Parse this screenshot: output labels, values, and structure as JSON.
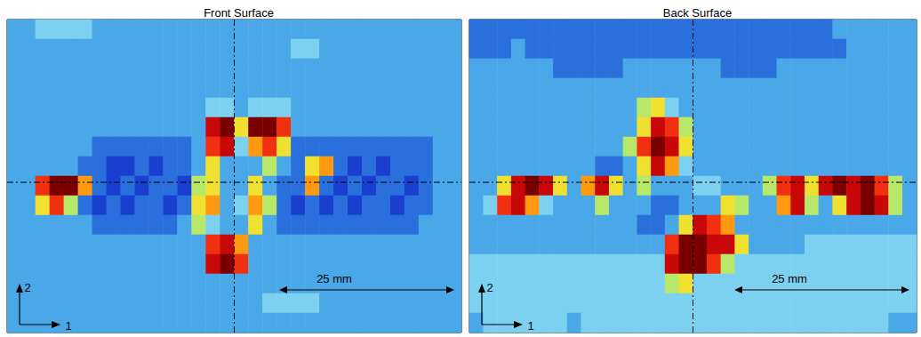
{
  "chart_data": [
    {
      "type": "heatmap",
      "title": "Front Surface",
      "zlim": [
        0,
        10
      ],
      "tick_labels": false,
      "annotations": {
        "axis_1": "1",
        "axis_2": "2",
        "scale_bar": "25 mm"
      },
      "cells": [
        [
          3,
          3,
          4,
          4,
          4,
          4,
          3,
          3,
          3,
          3,
          3,
          3,
          3,
          3,
          3,
          3,
          3,
          3,
          3,
          3,
          3,
          3,
          3,
          3,
          3,
          3,
          3,
          3,
          3,
          3,
          3,
          3
        ],
        [
          3,
          3,
          3,
          3,
          3,
          3,
          3,
          3,
          3,
          3,
          3,
          3,
          3,
          3,
          3,
          3,
          3,
          3,
          3,
          3,
          4,
          4,
          3,
          3,
          3,
          3,
          3,
          3,
          3,
          3,
          3,
          3
        ],
        [
          3,
          3,
          3,
          3,
          3,
          3,
          3,
          3,
          3,
          3,
          3,
          3,
          3,
          3,
          3,
          3,
          3,
          3,
          3,
          3,
          3,
          3,
          3,
          3,
          3,
          3,
          3,
          3,
          3,
          3,
          3,
          3
        ],
        [
          3,
          3,
          3,
          3,
          3,
          3,
          3,
          3,
          3,
          3,
          3,
          3,
          3,
          3,
          3,
          3,
          3,
          3,
          3,
          3,
          3,
          3,
          3,
          3,
          3,
          3,
          3,
          3,
          3,
          3,
          3,
          3
        ],
        [
          3,
          3,
          3,
          3,
          3,
          3,
          3,
          3,
          3,
          3,
          3,
          3,
          3,
          3,
          4,
          4,
          3,
          4,
          4,
          4,
          3,
          3,
          3,
          3,
          3,
          3,
          3,
          3,
          3,
          3,
          3,
          3
        ],
        [
          3,
          3,
          3,
          3,
          3,
          3,
          3,
          3,
          3,
          3,
          3,
          3,
          3,
          3,
          9,
          10,
          6,
          10,
          10,
          8,
          3,
          3,
          3,
          3,
          3,
          3,
          3,
          3,
          3,
          3,
          3,
          3
        ],
        [
          3,
          3,
          3,
          3,
          3,
          3,
          2,
          2,
          2,
          2,
          2,
          2,
          2,
          3,
          8,
          9,
          4,
          7,
          8,
          6,
          2,
          2,
          2,
          2,
          2,
          2,
          2,
          2,
          2,
          2,
          3,
          3
        ],
        [
          3,
          3,
          3,
          3,
          3,
          2,
          2,
          1,
          1,
          2,
          1,
          2,
          2,
          3,
          6,
          3,
          3,
          3,
          5,
          3,
          2,
          6,
          7,
          2,
          1,
          2,
          1,
          2,
          2,
          2,
          3,
          3
        ],
        [
          3,
          3,
          8,
          10,
          10,
          7,
          2,
          1,
          2,
          1,
          2,
          2,
          1,
          5,
          6,
          3,
          3,
          6,
          3,
          2,
          2,
          7,
          2,
          1,
          2,
          1,
          2,
          2,
          1,
          2,
          3,
          3
        ],
        [
          3,
          3,
          6,
          8,
          5,
          2,
          1,
          2,
          1,
          2,
          2,
          1,
          2,
          6,
          7,
          3,
          4,
          7,
          5,
          2,
          1,
          2,
          1,
          2,
          1,
          2,
          2,
          1,
          2,
          2,
          3,
          3
        ],
        [
          3,
          3,
          3,
          3,
          3,
          3,
          2,
          2,
          2,
          2,
          2,
          2,
          3,
          5,
          4,
          3,
          3,
          6,
          3,
          2,
          2,
          2,
          2,
          2,
          2,
          2,
          2,
          2,
          2,
          3,
          3,
          3
        ],
        [
          3,
          3,
          3,
          3,
          3,
          3,
          3,
          3,
          3,
          3,
          3,
          3,
          3,
          3,
          8,
          9,
          7,
          3,
          3,
          3,
          3,
          3,
          3,
          3,
          3,
          3,
          3,
          3,
          3,
          3,
          3,
          3
        ],
        [
          3,
          3,
          3,
          3,
          3,
          3,
          3,
          3,
          3,
          3,
          3,
          3,
          3,
          3,
          9,
          10,
          8,
          3,
          3,
          3,
          3,
          3,
          3,
          3,
          3,
          3,
          3,
          3,
          3,
          3,
          3,
          3
        ],
        [
          3,
          3,
          3,
          3,
          3,
          3,
          3,
          3,
          3,
          3,
          3,
          3,
          3,
          3,
          3,
          3,
          3,
          3,
          3,
          3,
          3,
          3,
          3,
          3,
          3,
          3,
          3,
          3,
          3,
          3,
          3,
          3
        ],
        [
          3,
          3,
          3,
          3,
          3,
          3,
          3,
          3,
          3,
          3,
          3,
          3,
          3,
          3,
          3,
          3,
          3,
          3,
          4,
          4,
          4,
          4,
          3,
          3,
          3,
          3,
          3,
          3,
          3,
          3,
          3,
          3
        ],
        [
          3,
          3,
          3,
          3,
          3,
          3,
          3,
          3,
          3,
          3,
          3,
          3,
          3,
          3,
          3,
          3,
          3,
          3,
          3,
          3,
          3,
          3,
          3,
          3,
          3,
          3,
          3,
          3,
          3,
          3,
          3,
          3
        ]
      ]
    },
    {
      "type": "heatmap",
      "title": "Back Surface",
      "zlim": [
        0,
        10
      ],
      "tick_labels": false,
      "annotations": {
        "axis_1": "1",
        "axis_2": "2",
        "scale_bar": "25 mm"
      },
      "cells": [
        [
          2,
          2,
          2,
          2,
          2,
          2,
          2,
          2,
          2,
          2,
          2,
          2,
          2,
          2,
          2,
          2,
          2,
          2,
          2,
          2,
          2,
          2,
          2,
          2,
          2,
          2,
          3,
          3,
          3,
          3,
          3,
          3
        ],
        [
          2,
          2,
          2,
          3,
          2,
          2,
          2,
          2,
          2,
          2,
          2,
          2,
          2,
          2,
          2,
          2,
          2,
          2,
          2,
          2,
          2,
          2,
          2,
          2,
          2,
          2,
          2,
          3,
          3,
          3,
          3,
          3
        ],
        [
          3,
          3,
          3,
          3,
          3,
          3,
          2,
          2,
          2,
          2,
          2,
          3,
          3,
          3,
          3,
          3,
          3,
          3,
          2,
          2,
          2,
          2,
          3,
          3,
          3,
          3,
          3,
          3,
          3,
          3,
          3,
          3
        ],
        [
          3,
          3,
          3,
          3,
          3,
          3,
          3,
          3,
          3,
          3,
          3,
          3,
          3,
          3,
          3,
          3,
          3,
          3,
          3,
          3,
          3,
          3,
          3,
          3,
          3,
          3,
          3,
          3,
          3,
          3,
          3,
          3
        ],
        [
          3,
          3,
          3,
          3,
          3,
          3,
          3,
          3,
          3,
          3,
          3,
          3,
          5,
          6,
          4,
          3,
          3,
          3,
          3,
          3,
          3,
          3,
          3,
          3,
          3,
          3,
          3,
          3,
          3,
          3,
          3,
          3
        ],
        [
          3,
          3,
          3,
          3,
          3,
          3,
          3,
          3,
          3,
          3,
          3,
          3,
          6,
          9,
          8,
          5,
          3,
          3,
          3,
          3,
          3,
          3,
          3,
          3,
          3,
          3,
          3,
          3,
          3,
          3,
          3,
          3
        ],
        [
          3,
          3,
          3,
          3,
          3,
          3,
          3,
          3,
          3,
          3,
          3,
          5,
          8,
          10,
          9,
          6,
          3,
          3,
          3,
          3,
          3,
          3,
          3,
          3,
          3,
          3,
          3,
          3,
          3,
          3,
          3,
          3
        ],
        [
          3,
          3,
          3,
          3,
          3,
          3,
          3,
          3,
          3,
          2,
          2,
          3,
          6,
          9,
          7,
          4,
          3,
          3,
          3,
          3,
          3,
          3,
          3,
          3,
          3,
          3,
          3,
          3,
          3,
          3,
          3,
          3
        ],
        [
          3,
          3,
          6,
          9,
          10,
          9,
          6,
          3,
          7,
          9,
          6,
          3,
          5,
          3,
          3,
          3,
          4,
          4,
          3,
          3,
          3,
          5,
          8,
          9,
          6,
          9,
          10,
          9,
          10,
          8,
          5,
          3
        ],
        [
          3,
          4,
          8,
          9,
          7,
          4,
          3,
          3,
          3,
          5,
          3,
          3,
          3,
          2,
          2,
          3,
          3,
          3,
          6,
          5,
          3,
          3,
          7,
          9,
          5,
          3,
          6,
          9,
          10,
          9,
          5,
          3
        ],
        [
          3,
          3,
          3,
          3,
          3,
          3,
          3,
          3,
          3,
          3,
          3,
          3,
          2,
          2,
          3,
          6,
          9,
          8,
          7,
          3,
          3,
          3,
          3,
          3,
          3,
          3,
          3,
          3,
          3,
          3,
          3,
          3
        ],
        [
          3,
          3,
          3,
          3,
          3,
          3,
          3,
          3,
          3,
          3,
          3,
          3,
          3,
          3,
          8,
          10,
          10,
          9,
          9,
          6,
          3,
          3,
          3,
          3,
          4,
          4,
          4,
          4,
          4,
          4,
          4,
          4
        ],
        [
          4,
          4,
          4,
          4,
          4,
          4,
          4,
          4,
          4,
          4,
          4,
          4,
          4,
          4,
          9,
          10,
          10,
          8,
          5,
          4,
          4,
          4,
          4,
          4,
          4,
          4,
          4,
          4,
          4,
          4,
          4,
          4
        ],
        [
          4,
          4,
          4,
          4,
          4,
          4,
          4,
          4,
          4,
          4,
          4,
          4,
          4,
          4,
          5,
          6,
          4,
          4,
          4,
          4,
          4,
          4,
          4,
          4,
          4,
          4,
          4,
          4,
          4,
          4,
          4,
          4
        ],
        [
          4,
          4,
          4,
          4,
          4,
          4,
          4,
          4,
          4,
          4,
          4,
          4,
          4,
          4,
          4,
          4,
          4,
          4,
          4,
          4,
          4,
          4,
          4,
          4,
          4,
          4,
          4,
          4,
          4,
          4,
          4,
          4
        ],
        [
          3,
          4,
          4,
          4,
          4,
          4,
          4,
          3,
          4,
          4,
          4,
          4,
          4,
          4,
          4,
          4,
          4,
          4,
          4,
          4,
          4,
          4,
          4,
          4,
          4,
          4,
          4,
          4,
          4,
          4,
          3,
          3
        ]
      ]
    }
  ]
}
